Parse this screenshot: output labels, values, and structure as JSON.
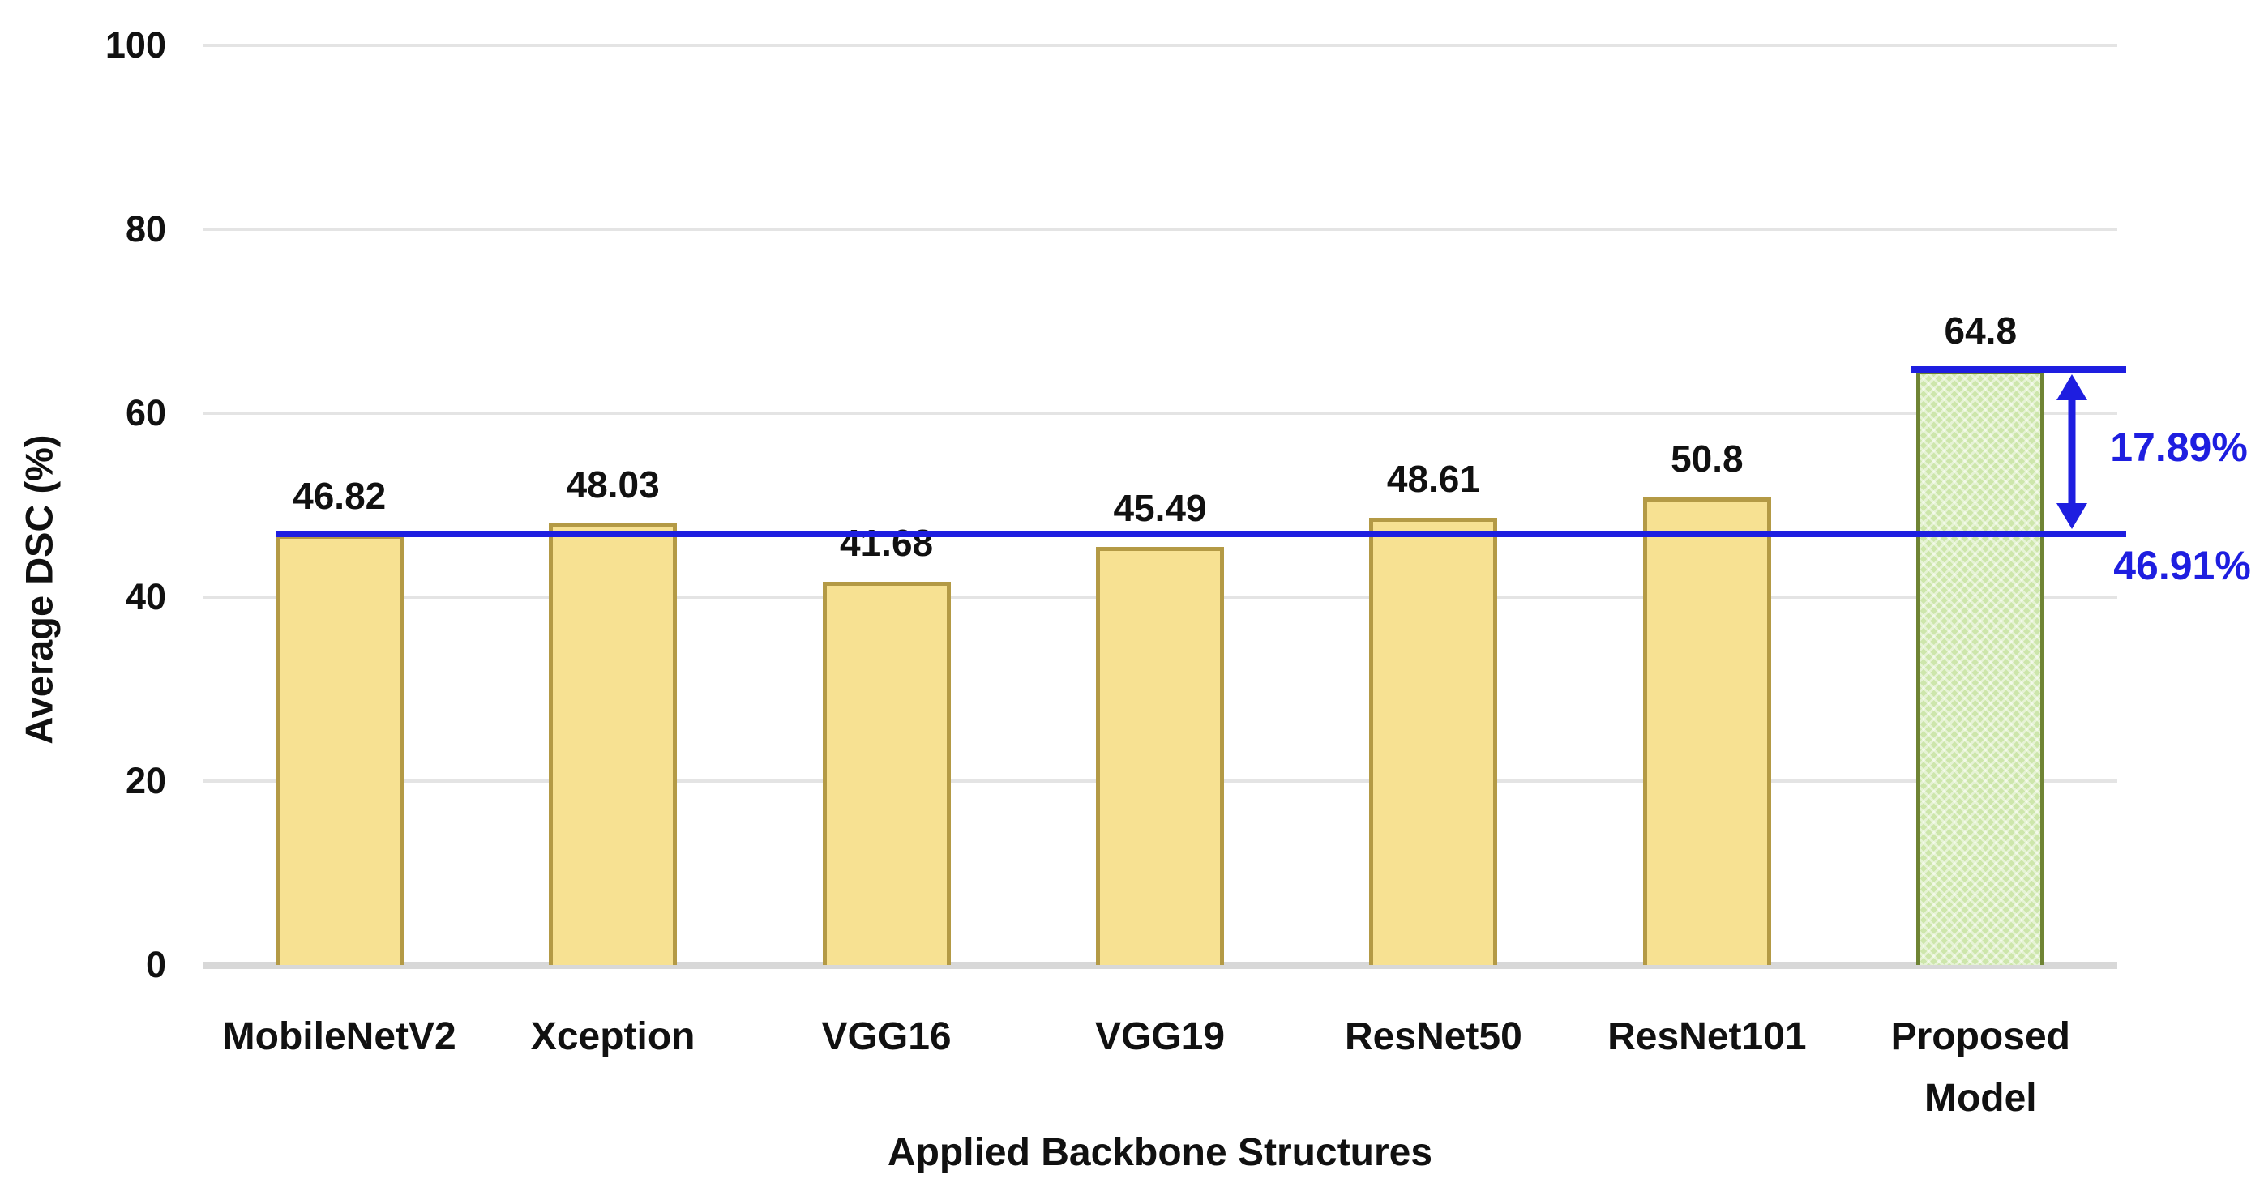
{
  "chart_data": {
    "type": "bar",
    "title": "",
    "xlabel": "Applied Backbone Structures",
    "ylabel": "Average DSC (%)",
    "categories": [
      "MobileNetV2",
      "Xception",
      "VGG16",
      "VGG19",
      "ResNet50",
      "ResNet101",
      "Proposed Model"
    ],
    "values": [
      46.82,
      48.03,
      41.68,
      45.49,
      48.61,
      50.8,
      64.8
    ],
    "bar_labels": [
      "46.82",
      "48.03",
      "41.68",
      "45.49",
      "48.61",
      "50.8",
      "64.8"
    ],
    "highlight_index": 6,
    "ylim": [
      0,
      100
    ],
    "yticks": [
      0,
      20,
      40,
      60,
      80,
      100
    ],
    "grid": true,
    "legend": "none",
    "annotations": {
      "baseline_value": 46.91,
      "baseline_label": "46.91%",
      "top_value": 64.8,
      "difference_label": "17.89%"
    },
    "colors": {
      "bar_fill": "#F7E192",
      "bar_border": "#B49A45",
      "highlight_fill": "#CDE6AB",
      "highlight_border": "#6F8434",
      "annotation_blue": "#1E1EE0",
      "gridline": "#E4E4E4",
      "axis_line": "#D8D8D8",
      "text": "#111111"
    }
  }
}
